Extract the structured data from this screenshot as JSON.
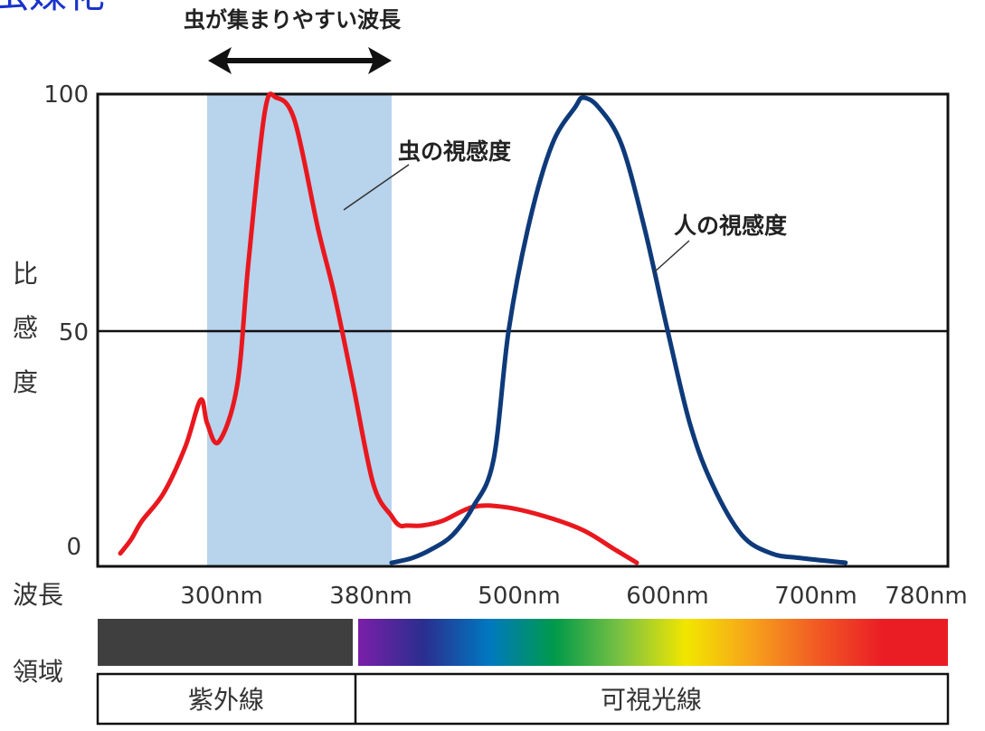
{
  "corner_text": "虫媒花",
  "chart_data": {
    "type": "line",
    "top_label": "虫が集まりやすい波長",
    "y_axis_label": "比感度",
    "x_axis_label": "波長",
    "yticks": [
      "0",
      "50",
      "100"
    ],
    "ylim": [
      0,
      100
    ],
    "xticks": [
      "300nm",
      "380nm",
      "500nm",
      "600nm",
      "700nm",
      "780nm"
    ],
    "highlight_band": {
      "from_nm": 300,
      "to_nm": 380,
      "color": "#b8d3ec"
    },
    "series": [
      {
        "name": "虫の視感度",
        "color": "#e8181e",
        "x": [
          260,
          265,
          270,
          280,
          290,
          297,
          300,
          305,
          313,
          318,
          325,
          330,
          338,
          348,
          355,
          363,
          372,
          380,
          388,
          395,
          410,
          430,
          460,
          490,
          520,
          545,
          565,
          580
        ],
        "y": [
          2,
          5,
          9,
          15,
          25,
          35,
          30,
          26,
          38,
          65,
          97,
          100,
          95,
          72,
          58,
          39,
          17,
          10,
          8,
          8,
          8,
          9,
          12,
          12,
          10,
          7,
          3,
          0
        ]
      },
      {
        "name": "人の視感度",
        "color": "#0e3a7a",
        "x": [
          380,
          400,
          420,
          440,
          460,
          480,
          495,
          510,
          525,
          540,
          545,
          555,
          570,
          585,
          600,
          615,
          630,
          650,
          670,
          690,
          720
        ],
        "y": [
          0,
          1,
          3,
          6,
          12,
          22,
          50,
          73,
          90,
          98,
          100,
          98,
          90,
          72,
          50,
          30,
          17,
          6,
          2,
          1,
          0
        ]
      }
    ],
    "region_label": "領域",
    "regions": [
      {
        "name": "紫外線",
        "color": "#3f3f3f"
      },
      {
        "name": "可視光線",
        "colors": [
          "#7a1fa8",
          "#2a2e8e",
          "#0078c0",
          "#009a4a",
          "#7ac142",
          "#f2e600",
          "#f7a21b",
          "#f15a24",
          "#ea1d25",
          "#ea1d25"
        ]
      }
    ]
  }
}
